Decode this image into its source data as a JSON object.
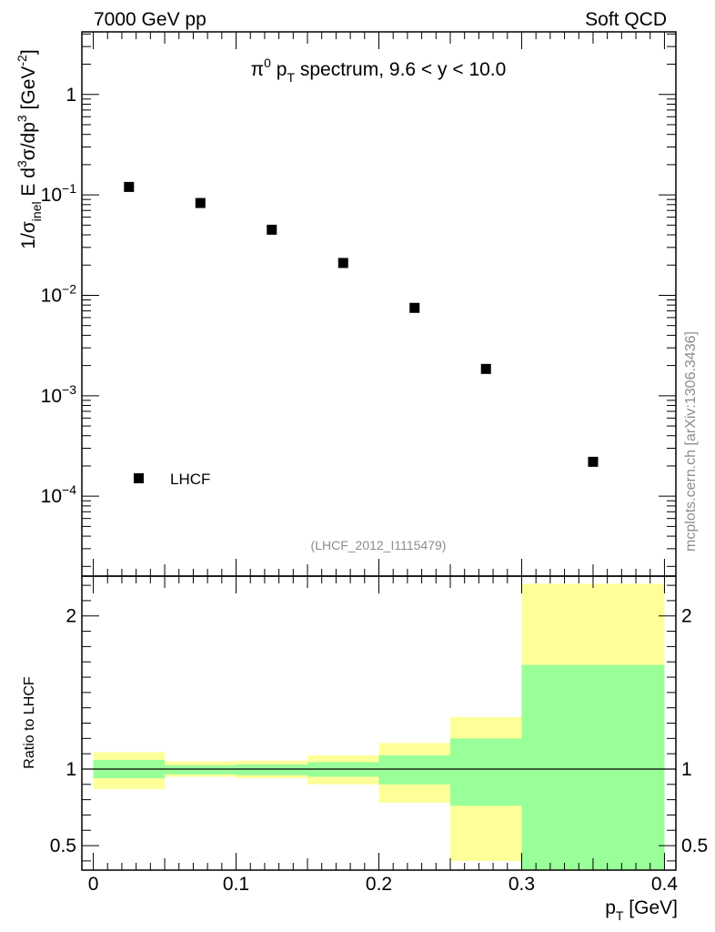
{
  "header": {
    "energy_label": "7000 GeV pp",
    "process_label": "Soft QCD",
    "side_label": "mcplots.cern.ch [arXiv:1306.3436]",
    "analysis_id": "(LHCF_2012_I1115479)"
  },
  "chart_data": [
    {
      "type": "scatter",
      "title": "π0 pT spectrum, 9.6 < y < 10.0",
      "title_parts": {
        "pi": "π",
        "pi_sup": "0",
        "p": " p",
        "p_sub": "T",
        "rest": " spectrum, 9.6 < y < 10.0"
      },
      "xlabel": "pT [GeV]",
      "ylabel": "1/σinel E d3σ/dp3 [GeV-2]",
      "ylabel_parts": {
        "a": "1/σ",
        "a_sub": "inel",
        "b": " E d",
        "b_sup": "3",
        "c": "σ/dp",
        "c_sup": "3",
        "d": " [GeV",
        "d_sup": "-2",
        "e": "]"
      },
      "yscale": "log",
      "xlim": [
        -0.008,
        0.408
      ],
      "ylim": [
        1.6e-05,
        4.2
      ],
      "y_ticks": [
        {
          "value": 1,
          "mantissa": "1",
          "exp": ""
        },
        {
          "value": 0.1,
          "mantissa": "10",
          "exp": "−1"
        },
        {
          "value": 0.01,
          "mantissa": "10",
          "exp": "−2"
        },
        {
          "value": 0.001,
          "mantissa": "10",
          "exp": "−3"
        },
        {
          "value": 0.0001,
          "mantissa": "10",
          "exp": "−4"
        }
      ],
      "series": [
        {
          "name": "LHCF",
          "marker": "square",
          "color": "#000000",
          "x": [
            0.025,
            0.075,
            0.125,
            0.175,
            0.225,
            0.275,
            0.35
          ],
          "y": [
            0.12,
            0.083,
            0.045,
            0.021,
            0.0075,
            0.00185,
            0.00022
          ]
        }
      ],
      "legend": {
        "location": "lower-left",
        "entries": [
          "LHCF"
        ]
      }
    },
    {
      "type": "area",
      "ylabel": "Ratio to LHCF",
      "xlabel": "pT [GeV]",
      "xlim": [
        -0.008,
        0.408
      ],
      "ylim": [
        0.34,
        2.26
      ],
      "x_ticks": [
        {
          "value": 0,
          "label": "0"
        },
        {
          "value": 0.1,
          "label": "0.1"
        },
        {
          "value": 0.2,
          "label": "0.2"
        },
        {
          "value": 0.3,
          "label": "0.3"
        },
        {
          "value": 0.4,
          "label": "0.4"
        }
      ],
      "y_ticks": [
        {
          "value": 0.5,
          "label": "0.5"
        },
        {
          "value": 1,
          "label": "1"
        },
        {
          "value": 2,
          "label": "2"
        }
      ],
      "reference_line": 1,
      "colors": {
        "total_band": "#ffff99",
        "stat_band": "#99ff99"
      },
      "bins": [
        {
          "x0": 0.0,
          "x1": 0.05,
          "total_lo": 0.87,
          "total_hi": 1.11,
          "stat_lo": 0.94,
          "stat_hi": 1.06
        },
        {
          "x0": 0.05,
          "x1": 0.1,
          "total_lo": 0.95,
          "total_hi": 1.05,
          "stat_lo": 0.965,
          "stat_hi": 1.025
        },
        {
          "x0": 0.1,
          "x1": 0.15,
          "total_lo": 0.94,
          "total_hi": 1.055,
          "stat_lo": 0.96,
          "stat_hi": 1.03
        },
        {
          "x0": 0.15,
          "x1": 0.2,
          "total_lo": 0.9,
          "total_hi": 1.09,
          "stat_lo": 0.95,
          "stat_hi": 1.045
        },
        {
          "x0": 0.2,
          "x1": 0.25,
          "total_lo": 0.78,
          "total_hi": 1.17,
          "stat_lo": 0.9,
          "stat_hi": 1.09
        },
        {
          "x0": 0.25,
          "x1": 0.3,
          "total_lo": 0.4,
          "total_hi": 1.34,
          "stat_lo": 0.76,
          "stat_hi": 1.2
        },
        {
          "x0": 0.3,
          "x1": 0.4,
          "total_lo": 0.34,
          "total_hi": 2.21,
          "stat_lo": 0.34,
          "stat_hi": 1.68
        }
      ]
    }
  ]
}
